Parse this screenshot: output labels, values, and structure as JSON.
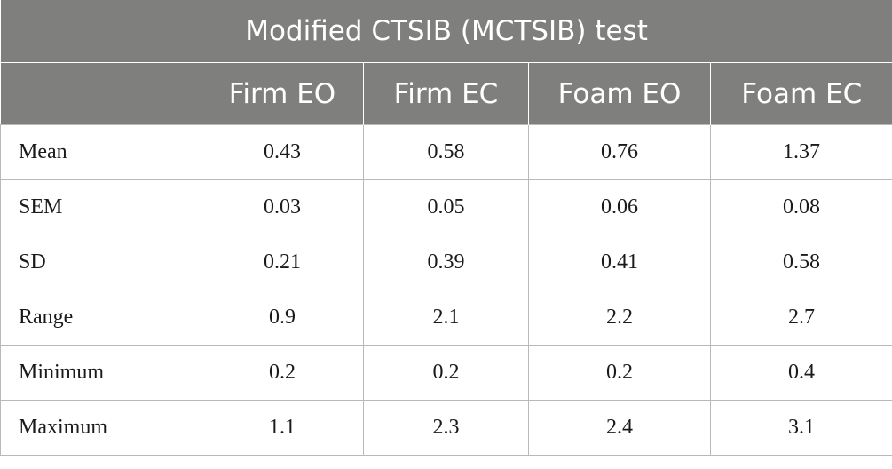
{
  "table": {
    "title": "Modified CTSIB (MCTSIB) test",
    "columns": [
      "",
      "Firm EO",
      "Firm EC",
      "Foam EO",
      "Foam EC"
    ],
    "rows": [
      {
        "label": "Mean",
        "values": [
          "0.43",
          "0.58",
          "0.76",
          "1.37"
        ]
      },
      {
        "label": "SEM",
        "values": [
          "0.03",
          "0.05",
          "0.06",
          "0.08"
        ]
      },
      {
        "label": "SD",
        "values": [
          "0.21",
          "0.39",
          "0.41",
          "0.58"
        ]
      },
      {
        "label": "Range",
        "values": [
          "0.9",
          "2.1",
          "2.2",
          "2.7"
        ]
      },
      {
        "label": "Minimum",
        "values": [
          "0.2",
          "0.2",
          "0.2",
          "0.4"
        ]
      },
      {
        "label": "Maximum",
        "values": [
          "1.1",
          "2.3",
          "2.4",
          "3.1"
        ]
      }
    ]
  },
  "colors": {
    "header_bg": "#7f807e",
    "header_text": "#ffffff",
    "grid": "#b9b9b9",
    "body_text": "#1a1a1a"
  }
}
